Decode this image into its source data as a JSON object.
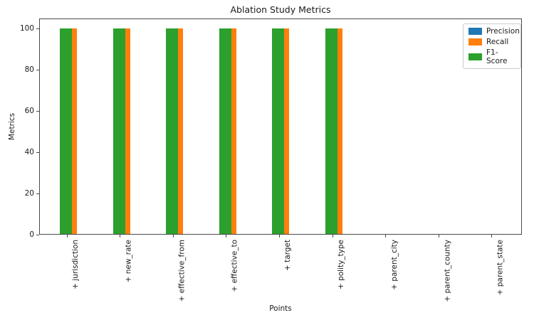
{
  "chart_data": {
    "type": "bar",
    "title": "Ablation Study Metrics",
    "xlabel": "Points",
    "ylabel": "Metrics",
    "categories": [
      "+ jurisdiction",
      "+ new_rate",
      "+ effective_from",
      "+ effective_to",
      "+ target",
      "+ polity_type",
      "+ parent_city",
      "+ parent_county",
      "+ parent_state"
    ],
    "series": [
      {
        "name": "Precision",
        "color": "#1f77b4",
        "values": [
          100,
          100,
          100,
          100,
          100,
          100,
          0,
          0,
          0
        ]
      },
      {
        "name": "Recall",
        "color": "#ff7f0e",
        "values": [
          100,
          100,
          100,
          100,
          100,
          100,
          0,
          0,
          0
        ]
      },
      {
        "name": "F1-Score",
        "color": "#2ca02c",
        "values": [
          100,
          100,
          100,
          100,
          100,
          100,
          0,
          0,
          0
        ]
      }
    ],
    "yticks": [
      0,
      20,
      40,
      60,
      80,
      100
    ],
    "ylim": [
      0,
      105
    ],
    "grid": false,
    "legend_position": "upper right",
    "x_tick_rotation": 90
  }
}
